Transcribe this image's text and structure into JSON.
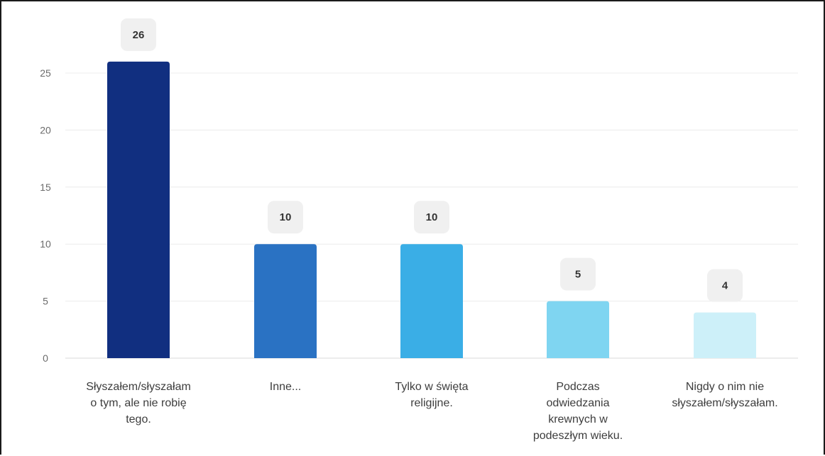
{
  "chart_data": {
    "type": "bar",
    "categories": [
      [
        "Słyszałem/słyszałam",
        "o tym, ale nie robię",
        "tego."
      ],
      [
        "Inne..."
      ],
      [
        "Tylko w święta",
        "religijne."
      ],
      [
        "Podczas",
        "odwiedzania",
        "krewnych w",
        "podeszłym wieku."
      ],
      [
        "Nigdy o nim nie",
        "słyszałem/słyszałam."
      ]
    ],
    "values": [
      26,
      10,
      10,
      5,
      4
    ],
    "colors": [
      "#112f80",
      "#2a72c3",
      "#3aaee6",
      "#7fd5f1",
      "#cdf0f9"
    ],
    "ylim": [
      0,
      25
    ],
    "yticks": [
      0,
      5,
      10,
      15,
      20,
      25
    ],
    "grid": true,
    "title": "",
    "xlabel": "",
    "ylabel": ""
  }
}
